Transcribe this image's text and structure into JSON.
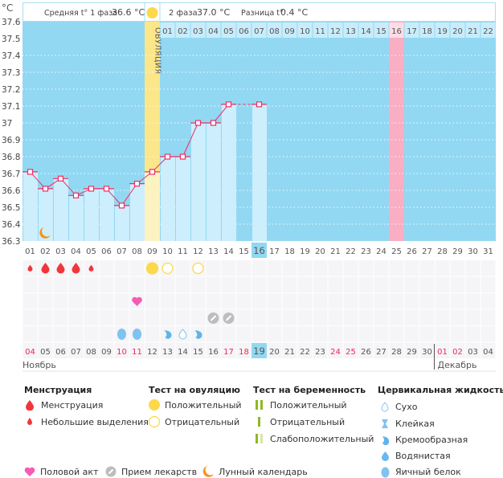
{
  "header": {
    "unit": "°C",
    "phase1_label": "Средняя t° 1 фаза",
    "phase1_value": "36.6 °C",
    "phase2_label": "2 фаза",
    "phase2_value": "37.0 °C",
    "diff_label": "Разница t°",
    "diff_value": "0.4 °C",
    "ovulation_label": "ОВУЛЯЦИЯ"
  },
  "chart_data": {
    "type": "line",
    "ylim": [
      36.3,
      37.6
    ],
    "yticks": [
      "37.6",
      "37.5",
      "37.4",
      "37.3",
      "37.2",
      "37.1",
      "37",
      "36.9",
      "36.8",
      "36.7",
      "36.6",
      "36.5",
      "36.4",
      "36.3"
    ],
    "grid": true,
    "cycle_days": [
      "01",
      "02",
      "03",
      "04",
      "05",
      "06",
      "07",
      "08",
      "09",
      "10",
      "11",
      "12",
      "13",
      "14",
      "15",
      "16",
      "17",
      "18",
      "19",
      "20",
      "21",
      "22",
      "23",
      "24",
      "25",
      "26",
      "27",
      "28",
      "29",
      "30",
      "31"
    ],
    "temperatures": [
      36.71,
      36.61,
      36.67,
      36.57,
      36.61,
      36.61,
      36.51,
      36.64,
      36.71,
      36.8,
      36.8,
      37.0,
      37.0,
      37.11,
      null,
      37.11
    ],
    "current_cycle_day": "16",
    "ovulation_day": "09",
    "marked_day": "25",
    "phase2_days": [
      "01",
      "02",
      "03",
      "04",
      "05",
      "06",
      "07",
      "08",
      "09",
      "10",
      "11",
      "12",
      "13",
      "14",
      "15",
      "16",
      "17",
      "18",
      "19",
      "20",
      "21",
      "22"
    ],
    "phase2_highlight": "16",
    "dates": [
      "04",
      "05",
      "06",
      "07",
      "08",
      "09",
      "10",
      "11",
      "12",
      "13",
      "14",
      "15",
      "16",
      "17",
      "18",
      "19",
      "20",
      "21",
      "22",
      "23",
      "24",
      "25",
      "26",
      "27",
      "28",
      "29",
      "30",
      "01",
      "02",
      "03",
      "04"
    ],
    "weekend_dates_index": [
      0,
      6,
      7,
      13,
      14,
      20,
      21,
      27,
      28
    ],
    "current_date": "19",
    "months": [
      "Ноябрь",
      "Декабрь"
    ],
    "events": {
      "menstruation": {
        "01": "light",
        "02": "heavy",
        "03": "heavy",
        "04": "heavy",
        "05": "light"
      },
      "ovulation_test": {
        "09": "positive",
        "10": "negative",
        "12": "negative"
      },
      "intercourse": [
        "08"
      ],
      "medication": [
        "13",
        "14"
      ],
      "cervical": {
        "07": "egg-white",
        "08": "egg-white",
        "10": "creamy",
        "11": "dry",
        "12": "creamy"
      },
      "lunar": [
        "02"
      ]
    },
    "colors": {
      "bg": "#92d8f2",
      "bar": "#cdeefc",
      "ovulation": "#fbe68a",
      "marked": "#f9aec4",
      "line": "#ef2e66",
      "weekend": "#f0285a"
    }
  },
  "legend": {
    "menstruation": {
      "title": "Менструация",
      "items": [
        "Менструация",
        "Небольшие выделения"
      ]
    },
    "ovulation_test": {
      "title": "Тест на овуляцию",
      "items": [
        "Положительный",
        "Отрицательный"
      ]
    },
    "pregnancy_test": {
      "title": "Тест на беременность",
      "items": [
        "Положительный",
        "Отрицательный",
        "Слабоположительный"
      ]
    },
    "cervical": {
      "title": "Цервикальная жидкость",
      "items": [
        "Сухо",
        "Клейкая",
        "Кремообразная",
        "Водянистая",
        "Яичный белок"
      ]
    },
    "other": [
      "Половой акт",
      "Прием лекарств",
      "Лунный календарь"
    ]
  }
}
